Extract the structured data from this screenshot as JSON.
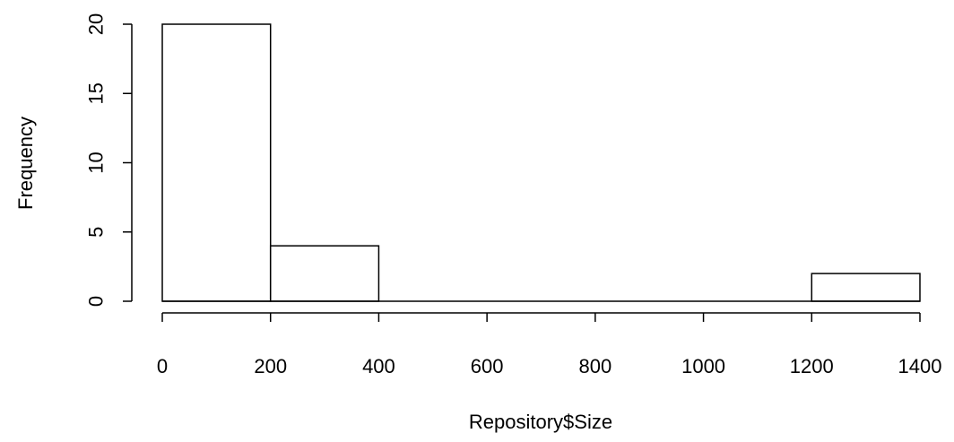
{
  "chart_data": {
    "type": "bar",
    "bin_edges": [
      0,
      200,
      400,
      600,
      800,
      1000,
      1200,
      1400
    ],
    "values": [
      20,
      4,
      0,
      0,
      0,
      0,
      2
    ],
    "title": "",
    "xlabel": "Repository$Size",
    "ylabel": "Frequency",
    "xlim": [
      0,
      1400
    ],
    "ylim": [
      0,
      20
    ],
    "x_ticks": [
      0,
      200,
      400,
      600,
      800,
      1000,
      1200,
      1400
    ],
    "y_ticks": [
      0,
      5,
      10,
      15,
      20
    ],
    "x_tick_labels": [
      "0",
      "200",
      "400",
      "600",
      "800",
      "1000",
      "1200",
      "1400"
    ],
    "y_tick_labels": [
      "0",
      "5",
      "10",
      "15",
      "20"
    ],
    "grid": false,
    "colors": {
      "bar_fill": "#ffffff",
      "bar_stroke": "#000000",
      "axis": "#000000",
      "text": "#000000"
    }
  }
}
